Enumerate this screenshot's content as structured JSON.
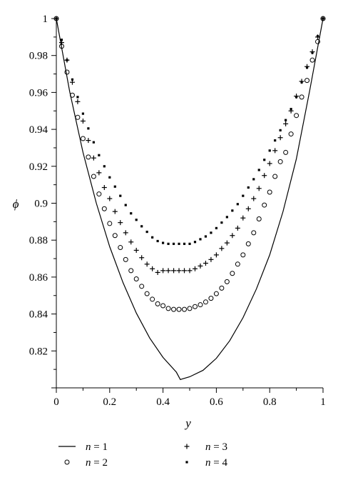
{
  "chart_data": {
    "type": "line",
    "xlabel": "y",
    "ylabel": "ϕ",
    "xlim": [
      0,
      1
    ],
    "ylim": [
      0.8,
      1.0
    ],
    "x_ticks": [
      "0",
      "0.2",
      "0.4",
      "0.6",
      "0.8",
      "1"
    ],
    "y_ticks": [
      "0.82",
      "0.84",
      "0.86",
      "0.88",
      "0.9",
      "0.92",
      "0.94",
      "0.96",
      "0.98",
      "1"
    ],
    "grid": false,
    "legend_position": "bottom",
    "series": [
      {
        "name": "n = 1",
        "legend_var": "n",
        "legend_rest": " = 1",
        "style": "solid-line",
        "x": [
          0,
          0.05,
          0.1,
          0.15,
          0.2,
          0.25,
          0.3,
          0.35,
          0.4,
          0.45,
          0.465,
          0.5,
          0.55,
          0.6,
          0.65,
          0.7,
          0.75,
          0.8,
          0.85,
          0.9,
          0.95,
          1.0
        ],
        "values": [
          1.0,
          0.9605,
          0.9275,
          0.9,
          0.8765,
          0.857,
          0.8405,
          0.827,
          0.8165,
          0.8085,
          0.8045,
          0.806,
          0.8095,
          0.816,
          0.8255,
          0.838,
          0.8535,
          0.872,
          0.8955,
          0.924,
          0.961,
          1.0
        ]
      },
      {
        "name": "n = 2",
        "legend_var": "n",
        "legend_rest": " = 2",
        "style": "open-circle",
        "x": [
          0,
          0.02,
          0.04,
          0.06,
          0.08,
          0.1,
          0.12,
          0.14,
          0.16,
          0.18,
          0.2,
          0.22,
          0.24,
          0.26,
          0.28,
          0.3,
          0.32,
          0.34,
          0.36,
          0.38,
          0.4,
          0.42,
          0.44,
          0.46,
          0.48,
          0.5,
          0.52,
          0.54,
          0.56,
          0.58,
          0.6,
          0.62,
          0.64,
          0.66,
          0.68,
          0.7,
          0.72,
          0.74,
          0.76,
          0.78,
          0.8,
          0.82,
          0.84,
          0.86,
          0.88,
          0.9,
          0.92,
          0.94,
          0.96,
          0.98,
          1.0
        ],
        "values": [
          1.0,
          0.985,
          0.971,
          0.9585,
          0.9465,
          0.935,
          0.925,
          0.9145,
          0.905,
          0.897,
          0.889,
          0.8825,
          0.876,
          0.8695,
          0.8635,
          0.859,
          0.855,
          0.851,
          0.848,
          0.8455,
          0.8445,
          0.843,
          0.8425,
          0.8425,
          0.8425,
          0.843,
          0.844,
          0.845,
          0.8465,
          0.8485,
          0.851,
          0.854,
          0.8575,
          0.862,
          0.867,
          0.872,
          0.878,
          0.884,
          0.8915,
          0.899,
          0.906,
          0.9145,
          0.9225,
          0.9275,
          0.9375,
          0.9475,
          0.9575,
          0.9665,
          0.9775,
          0.9875,
          1.0
        ]
      },
      {
        "name": "n = 3",
        "legend_var": "n",
        "legend_rest": " = 3",
        "style": "plus",
        "x": [
          0,
          0.02,
          0.04,
          0.06,
          0.08,
          0.1,
          0.12,
          0.14,
          0.16,
          0.18,
          0.2,
          0.22,
          0.24,
          0.26,
          0.28,
          0.3,
          0.32,
          0.34,
          0.36,
          0.38,
          0.4,
          0.42,
          0.44,
          0.46,
          0.48,
          0.5,
          0.52,
          0.54,
          0.56,
          0.58,
          0.6,
          0.62,
          0.64,
          0.66,
          0.68,
          0.7,
          0.72,
          0.74,
          0.76,
          0.78,
          0.8,
          0.82,
          0.84,
          0.86,
          0.88,
          0.9,
          0.92,
          0.94,
          0.96,
          0.98,
          1.0
        ],
        "values": [
          1.0,
          0.987,
          0.9775,
          0.9655,
          0.955,
          0.9445,
          0.934,
          0.9245,
          0.9165,
          0.9085,
          0.9025,
          0.8955,
          0.8895,
          0.884,
          0.879,
          0.8745,
          0.8705,
          0.867,
          0.8645,
          0.8625,
          0.8635,
          0.8635,
          0.8635,
          0.8635,
          0.8635,
          0.8635,
          0.8645,
          0.866,
          0.8675,
          0.8695,
          0.872,
          0.8755,
          0.8785,
          0.8825,
          0.8865,
          0.892,
          0.897,
          0.9025,
          0.908,
          0.915,
          0.9215,
          0.9285,
          0.9355,
          0.943,
          0.95,
          0.958,
          0.966,
          0.974,
          0.982,
          0.99,
          1.0
        ]
      },
      {
        "name": "n = 4",
        "legend_var": "n",
        "legend_rest": " = 4",
        "style": "filled-square",
        "x": [
          0,
          0.02,
          0.04,
          0.06,
          0.08,
          0.1,
          0.12,
          0.14,
          0.16,
          0.18,
          0.2,
          0.22,
          0.24,
          0.26,
          0.28,
          0.3,
          0.32,
          0.34,
          0.36,
          0.38,
          0.4,
          0.42,
          0.44,
          0.46,
          0.48,
          0.5,
          0.52,
          0.54,
          0.56,
          0.58,
          0.6,
          0.62,
          0.64,
          0.66,
          0.68,
          0.7,
          0.72,
          0.74,
          0.76,
          0.78,
          0.8,
          0.82,
          0.84,
          0.86,
          0.88,
          0.9,
          0.92,
          0.94,
          0.96,
          0.98,
          1.0
        ],
        "values": [
          1.0,
          0.9885,
          0.9775,
          0.967,
          0.9575,
          0.9485,
          0.9405,
          0.933,
          0.926,
          0.92,
          0.914,
          0.909,
          0.904,
          0.899,
          0.8945,
          0.891,
          0.8875,
          0.8845,
          0.8815,
          0.8795,
          0.8785,
          0.878,
          0.878,
          0.878,
          0.878,
          0.878,
          0.879,
          0.8805,
          0.882,
          0.884,
          0.8865,
          0.8895,
          0.8925,
          0.896,
          0.8995,
          0.904,
          0.9085,
          0.913,
          0.918,
          0.9235,
          0.9285,
          0.934,
          0.9395,
          0.945,
          0.951,
          0.9575,
          0.9655,
          0.9735,
          0.9815,
          0.9905,
          1.0
        ]
      }
    ]
  }
}
